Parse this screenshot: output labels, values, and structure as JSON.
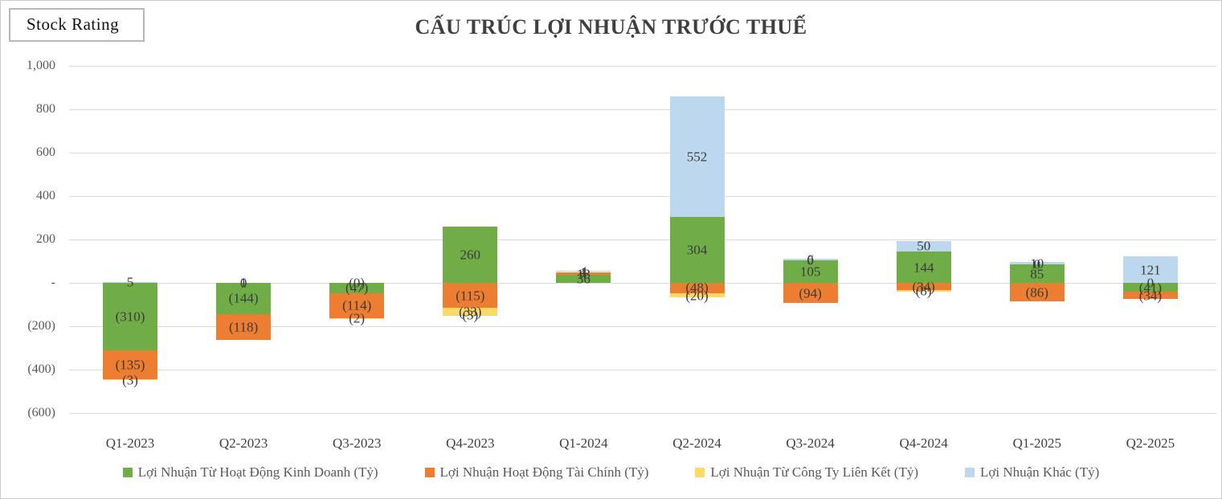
{
  "header": {
    "stock_rating_label": "Stock Rating",
    "title": "CẤU TRÚC LỢI NHUẬN TRƯỚC THUẾ"
  },
  "chart_data": {
    "type": "bar",
    "stacked": true,
    "title": "CẤU TRÚC LỢI NHUẬN TRƯỚC THUẾ",
    "categories": [
      "Q1-2023",
      "Q2-2023",
      "Q3-2023",
      "Q4-2023",
      "Q1-2024",
      "Q2-2024",
      "Q3-2024",
      "Q4-2024",
      "Q1-2025",
      "Q2-2025"
    ],
    "series": [
      {
        "name": "Lợi Nhuận Từ Hoạt Động Kinh Doanh (Tỷ)",
        "color": "#70AD47",
        "values": [
          -310,
          -144,
          -47,
          260,
          36,
          304,
          105,
          144,
          85,
          -41
        ],
        "labels": [
          "(310)",
          "(144)",
          "(47)",
          "260",
          "36",
          "304",
          "105",
          "144",
          "85",
          "(41)"
        ]
      },
      {
        "name": "Lợi Nhuận Hoạt Động Tài Chính (Tỷ)",
        "color": "#ED7D31",
        "values": [
          -135,
          -118,
          -114,
          -115,
          13,
          -48,
          -94,
          -34,
          -86,
          -34
        ],
        "labels": [
          "(135)",
          "(118)",
          "(114)",
          "(115)",
          "13",
          "(48)",
          "(94)",
          "(34)",
          "(86)",
          "(34)"
        ]
      },
      {
        "name": "Lợi Nhuận Từ Công Ty Liên Kết (Tỷ)",
        "color": "#FFD966",
        "values": [
          -3,
          1,
          -2,
          -33,
          1,
          -20,
          0,
          -8,
          0,
          0
        ],
        "labels": [
          "(3)",
          "1",
          "(2)",
          "(33)",
          "1",
          "(20)",
          "0",
          "(8)",
          "0",
          "0"
        ]
      },
      {
        "name": "Lợi Nhuận Khác (Tỷ)",
        "color": "#BDD7EE",
        "values": [
          5,
          0,
          0,
          -3,
          4,
          552,
          6,
          50,
          10,
          121
        ],
        "labels": [
          "5",
          "0",
          "(0)",
          "(3)",
          "4",
          "552",
          "6",
          "50",
          "10",
          "121"
        ]
      }
    ],
    "y_axis": {
      "min": -600,
      "max": 1000,
      "tick_values": [
        1000,
        800,
        600,
        400,
        200,
        0,
        -200,
        -400,
        -600
      ],
      "tick_labels": [
        "1,000",
        "800",
        "600",
        "400",
        "200",
        "-",
        "(200)",
        "(400)",
        "(600)"
      ]
    },
    "legend_position": "bottom",
    "gridlines": true
  },
  "colors": {
    "gridline": "#D9D9D9",
    "title_text": "#3F3F3F",
    "tick_text": "#595959",
    "label_text": "#3B3B3B"
  }
}
